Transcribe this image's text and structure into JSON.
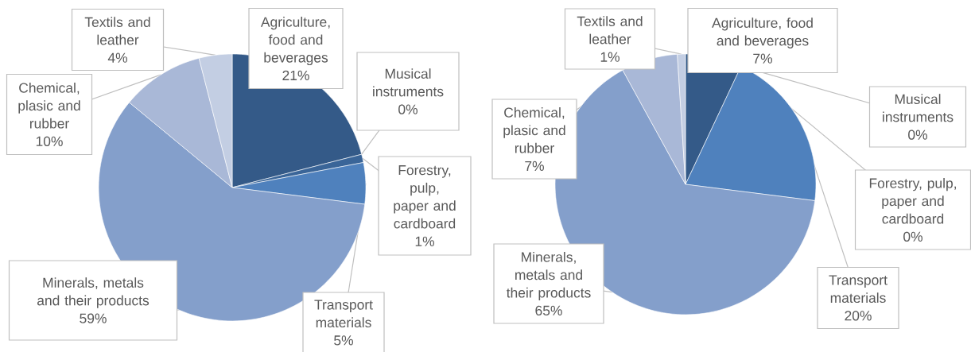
{
  "chart_data": [
    {
      "type": "pie",
      "categories": [
        "Agriculture, food and beverages",
        "Musical instruments",
        "Forestry, pulp, paper and cardboard",
        "Transport materials",
        "Minerals, metals and their products",
        "Chemical, plasic and rubber",
        "Textils and leather"
      ],
      "values": [
        21,
        0,
        1,
        5,
        59,
        10,
        4
      ],
      "value_labels": [
        "21%",
        "0%",
        "1%",
        "5%",
        "59%",
        "10%",
        "4%"
      ],
      "colors": [
        "#345a88",
        "#2e5282",
        "#3a6598",
        "#4f81bd",
        "#849fcb",
        "#a9b8d7",
        "#c3cee3"
      ]
    },
    {
      "type": "pie",
      "categories": [
        "Agriculture, food and beverages",
        "Musical instruments",
        "Forestry, pulp, paper and cardboard",
        "Transport materials",
        "Minerals, metals and their products",
        "Chemical, plasic and rubber",
        "Textils and leather"
      ],
      "values": [
        7,
        0,
        0,
        20,
        65,
        7,
        1
      ],
      "value_labels": [
        "7%",
        "0%",
        "0%",
        "20%",
        "65%",
        "7%",
        "1%"
      ],
      "colors": [
        "#345a88",
        "#2e5282",
        "#3a6598",
        "#4f81bd",
        "#849fcb",
        "#a9b8d7",
        "#c3cee3"
      ]
    }
  ]
}
